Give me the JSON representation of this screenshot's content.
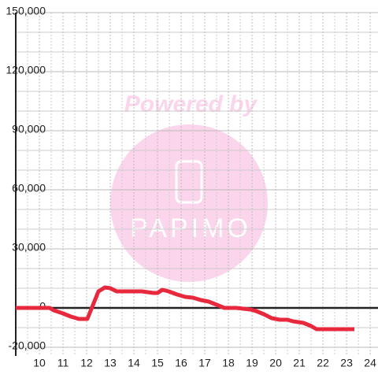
{
  "chart_data": {
    "type": "line",
    "x": [
      9,
      10.43,
      10.6,
      11,
      11.33,
      11.67,
      12.03,
      12.5,
      12.77,
      13,
      13.27,
      14.33,
      14.83,
      15,
      15.2,
      15.47,
      15.83,
      16.17,
      16.5,
      16.83,
      17.17,
      17.5,
      17.83,
      18.33,
      18.93,
      19.17,
      19.5,
      19.83,
      20.17,
      20.5,
      20.73,
      21.17,
      21.5,
      21.73,
      23.33
    ],
    "series": [
      {
        "color": "#e8283c",
        "values": [
          0,
          0,
          -1200,
          -2800,
          -4400,
          -5600,
          -5600,
          8400,
          10400,
          10000,
          8400,
          8400,
          7600,
          7600,
          9200,
          8400,
          6800,
          5600,
          5200,
          4000,
          3200,
          1600,
          0,
          0,
          -800,
          -1600,
          -3200,
          -5200,
          -6000,
          -6000,
          -6800,
          -7600,
          -9200,
          -10800,
          -10800
        ]
      }
    ],
    "xlim": [
      9,
      24.33
    ],
    "xticks": [
      10,
      11,
      12,
      13,
      14,
      15,
      16,
      17,
      18,
      19,
      20,
      21,
      22,
      23,
      24
    ],
    "ylim": [
      -24400,
      150000
    ],
    "yticks": [
      {
        "value": -20000,
        "label": "-20,000"
      },
      0,
      {
        "value": 30000,
        "label": "30,000"
      },
      {
        "value": 60000,
        "label": "60,000"
      },
      {
        "value": 90000,
        "label": "90,000"
      },
      {
        "value": 120000,
        "label": "120,000"
      },
      {
        "value": 150000,
        "label": "150,000"
      }
    ],
    "grid": true
  },
  "watermark": {
    "line1": "Powered by",
    "line2": "PAPIMO"
  }
}
